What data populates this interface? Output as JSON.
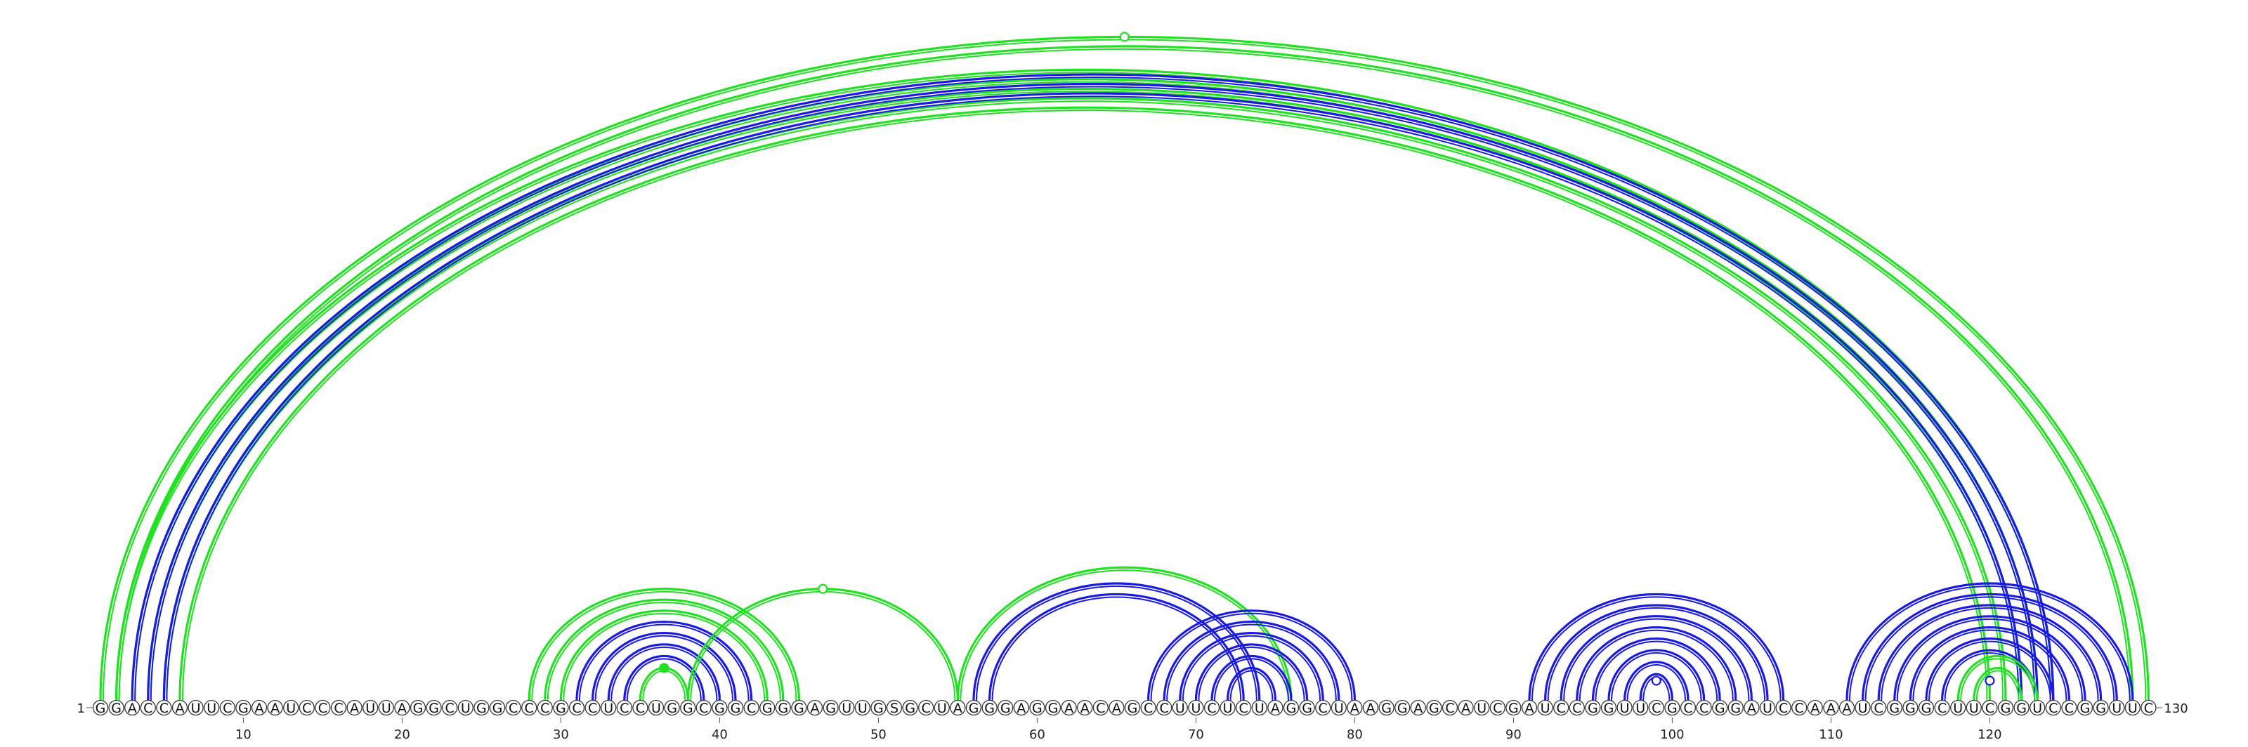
{
  "sequence": "GGACCAUUCGAAUCCCAUUAGGCUGGCCCGCCUCCUGGCGGCGGGAGUUGSGCUAGGGAGGAACAGCCUUCUCUAGGCUAAGGAGCAUCGAUCCGGUUCGCCGGAUCCAAAUCGGGCUUCGGUCCGGUUC",
  "start_label": "1",
  "end_label": "130",
  "tick_labels": [
    "10",
    "20",
    "30",
    "40",
    "50",
    "60",
    "70",
    "80",
    "90",
    "100",
    "110",
    "120"
  ],
  "colors": {
    "green": "#22e022",
    "blue": "#1a1ae0",
    "outline": "#333333"
  },
  "arc_groups": [
    {
      "color": "green",
      "pairs": [
        [
          1,
          130
        ],
        [
          2,
          129
        ]
      ],
      "mid_marker": "open"
    },
    {
      "color": "green",
      "pairs": [
        [
          2,
          124
        ],
        [
          3,
          123
        ],
        [
          4,
          122
        ],
        [
          5,
          121
        ],
        [
          6,
          120
        ]
      ]
    },
    {
      "color": "blue",
      "pairs": [
        [
          3,
          124
        ],
        [
          4,
          123
        ],
        [
          5,
          122
        ]
      ]
    },
    {
      "color": "green",
      "pairs": [
        [
          28,
          45
        ],
        [
          29,
          44
        ],
        [
          30,
          43
        ]
      ]
    },
    {
      "color": "blue",
      "pairs": [
        [
          31,
          42
        ],
        [
          32,
          41
        ],
        [
          33,
          40
        ],
        [
          34,
          39
        ]
      ]
    },
    {
      "color": "green",
      "pairs": [
        [
          35,
          38
        ]
      ],
      "mid_marker": "filled"
    },
    {
      "color": "green",
      "pairs": [
        [
          38,
          55
        ]
      ],
      "mid_marker": "open"
    },
    {
      "color": "green",
      "pairs": [
        [
          55,
          76
        ]
      ]
    },
    {
      "color": "blue",
      "pairs": [
        [
          56,
          74
        ],
        [
          57,
          73
        ]
      ]
    },
    {
      "color": "blue",
      "pairs": [
        [
          67,
          80
        ],
        [
          68,
          79
        ],
        [
          69,
          78
        ],
        [
          70,
          77
        ],
        [
          71,
          76
        ],
        [
          72,
          75
        ]
      ]
    },
    {
      "color": "blue",
      "pairs": [
        [
          91,
          107
        ],
        [
          92,
          106
        ],
        [
          93,
          105
        ],
        [
          94,
          104
        ],
        [
          95,
          103
        ],
        [
          96,
          102
        ],
        [
          97,
          101
        ],
        [
          98,
          100
        ]
      ]
    },
    {
      "color": "blue",
      "pairs": [
        [
          99,
          99
        ]
      ],
      "mid_marker": "open"
    },
    {
      "color": "blue",
      "pairs": [
        [
          111,
          129
        ],
        [
          112,
          128
        ],
        [
          113,
          127
        ],
        [
          114,
          126
        ],
        [
          115,
          125
        ],
        [
          116,
          124
        ],
        [
          117,
          123
        ]
      ]
    },
    {
      "color": "green",
      "pairs": [
        [
          118,
          123
        ],
        [
          119,
          122
        ]
      ]
    },
    {
      "color": "blue",
      "pairs": [
        [
          120,
          120
        ]
      ],
      "mid_marker": "open"
    }
  ]
}
